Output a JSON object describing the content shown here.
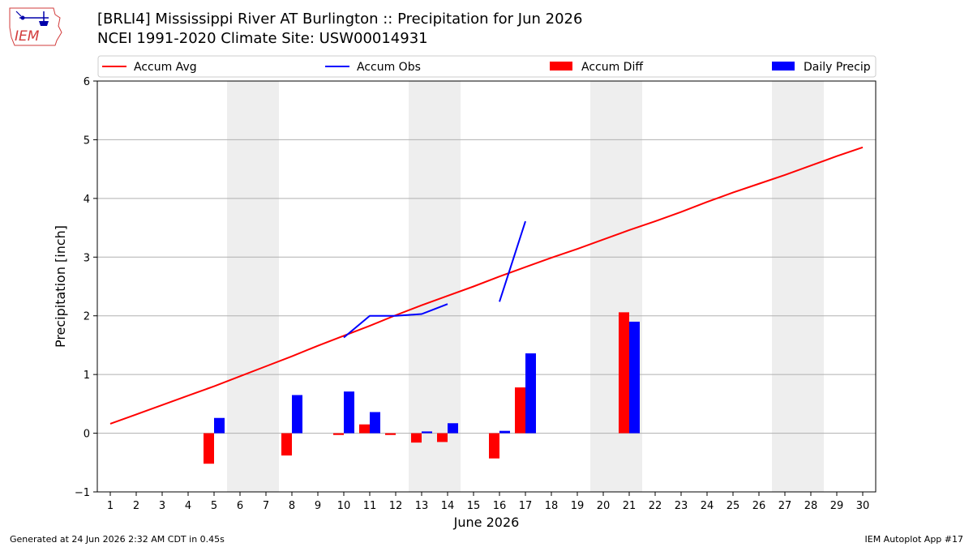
{
  "header": {
    "title_line1": "[BRLI4] Mississippi River  AT Burlington :: Precipitation for Jun 2026",
    "title_line2": "NCEI 1991-2020 Climate Site: USW00014931"
  },
  "logo": {
    "text": "IEM"
  },
  "footer": {
    "generated": "Generated at 24 Jun 2026 2:32 AM CDT in 0.45s",
    "app": "IEM Autoplot App #17"
  },
  "colors": {
    "avg": "#ff0000",
    "obs": "#0000ff",
    "diff": "#ff0000",
    "daily": "#0000ff",
    "weekend": "#eeeeee",
    "grid": "#b0b0b0"
  },
  "chart_data": {
    "type": "bar",
    "xlabel": "June 2026",
    "ylabel": "Precipitation [inch]",
    "xlim": [
      0.5,
      30.5
    ],
    "ylim": [
      -1,
      6
    ],
    "x_ticks": [
      1,
      2,
      3,
      4,
      5,
      6,
      7,
      8,
      9,
      10,
      11,
      12,
      13,
      14,
      15,
      16,
      17,
      18,
      19,
      20,
      21,
      22,
      23,
      24,
      25,
      26,
      27,
      28,
      29,
      30
    ],
    "y_ticks": [
      -1,
      0,
      1,
      2,
      3,
      4,
      5,
      6
    ],
    "y_grid": true,
    "weekend_bands": [
      [
        5.5,
        7.5
      ],
      [
        12.5,
        14.5
      ],
      [
        19.5,
        21.5
      ],
      [
        26.5,
        28.5
      ]
    ],
    "legend": {
      "placement": "top",
      "entries": [
        {
          "label": "Accum Avg",
          "kind": "line",
          "color": "#ff0000"
        },
        {
          "label": "Accum Obs",
          "kind": "line",
          "color": "#0000ff"
        },
        {
          "label": "Accum Diff",
          "kind": "bar",
          "color": "#ff0000"
        },
        {
          "label": "Daily Precip",
          "kind": "bar",
          "color": "#0000ff"
        }
      ]
    },
    "series": [
      {
        "name": "Accum Avg",
        "kind": "line",
        "x": [
          1,
          2,
          3,
          4,
          5,
          6,
          7,
          8,
          9,
          10,
          11,
          12,
          13,
          14,
          15,
          16,
          17,
          18,
          19,
          20,
          21,
          22,
          23,
          24,
          25,
          26,
          27,
          28,
          29,
          30
        ],
        "values": [
          0.16,
          0.32,
          0.48,
          0.64,
          0.8,
          0.97,
          1.14,
          1.31,
          1.49,
          1.66,
          1.83,
          2.01,
          2.18,
          2.34,
          2.5,
          2.67,
          2.83,
          2.99,
          3.14,
          3.3,
          3.46,
          3.61,
          3.77,
          3.94,
          4.1,
          4.25,
          4.4,
          4.56,
          4.72,
          4.87
        ]
      },
      {
        "name": "Accum Obs",
        "kind": "line",
        "segments": [
          {
            "x": [
              10,
              11,
              12,
              13,
              14
            ],
            "values": [
              1.63,
              2.0,
              2.0,
              2.03,
              2.2
            ]
          },
          {
            "x": [
              16,
              17
            ],
            "values": [
              2.24,
              3.61
            ]
          }
        ]
      },
      {
        "name": "Accum Diff",
        "kind": "bar",
        "x": [
          5,
          8,
          10,
          11,
          12,
          13,
          14,
          16,
          17,
          21
        ],
        "values": [
          -0.52,
          -0.38,
          -0.03,
          0.15,
          -0.03,
          -0.16,
          -0.15,
          -0.43,
          0.78,
          2.06
        ]
      },
      {
        "name": "Daily Precip",
        "kind": "bar",
        "x": [
          5,
          8,
          10,
          11,
          13,
          14,
          16,
          17,
          21
        ],
        "values": [
          0.26,
          0.65,
          0.71,
          0.36,
          0.03,
          0.17,
          0.04,
          1.36,
          1.9
        ]
      }
    ]
  }
}
